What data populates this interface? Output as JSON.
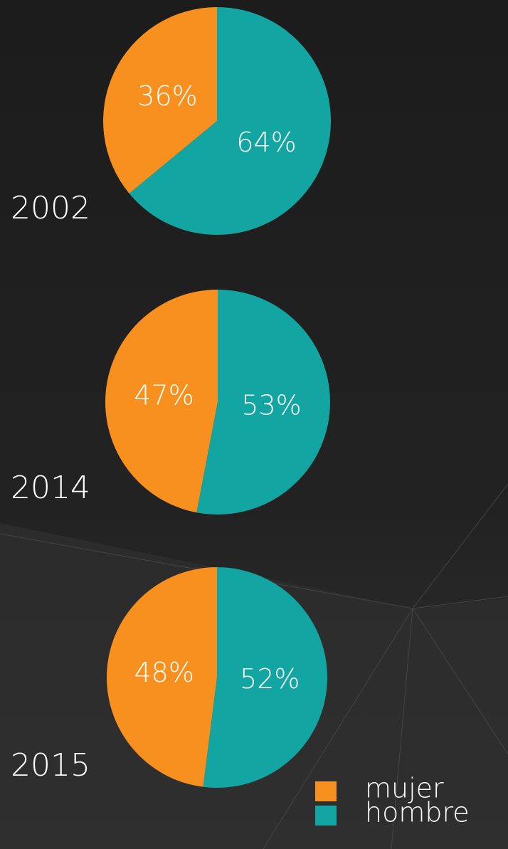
{
  "chart_data": [
    {
      "type": "pie",
      "title": "2002",
      "categories": [
        "mujer",
        "hombre"
      ],
      "values": [
        36,
        64
      ],
      "value_labels": [
        "36%",
        "64%"
      ],
      "colors": [
        "#f7901e",
        "#12a5a1"
      ]
    },
    {
      "type": "pie",
      "title": "2014",
      "categories": [
        "mujer",
        "hombre"
      ],
      "values": [
        47,
        53
      ],
      "value_labels": [
        "47%",
        "53%"
      ],
      "colors": [
        "#f7901e",
        "#12a5a1"
      ]
    },
    {
      "type": "pie",
      "title": "2015",
      "categories": [
        "mujer",
        "hombre"
      ],
      "values": [
        48,
        52
      ],
      "value_labels": [
        "48%",
        "52%"
      ],
      "colors": [
        "#f7901e",
        "#12a5a1"
      ]
    }
  ]
}
